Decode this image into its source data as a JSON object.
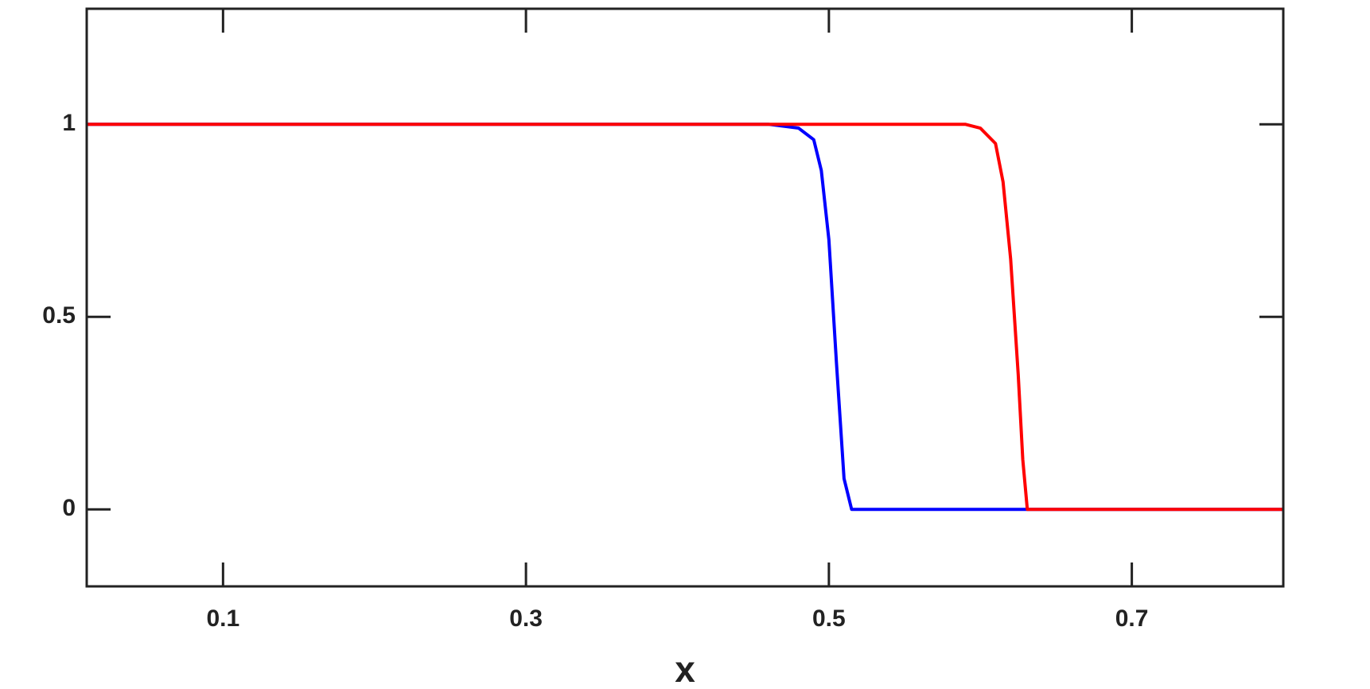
{
  "chart_data": {
    "type": "line",
    "xlabel": "x",
    "x": [
      0.01,
      0.1,
      0.2,
      0.3,
      0.4,
      0.46,
      0.48,
      0.49,
      0.495,
      0.5,
      0.505,
      0.51,
      0.515,
      0.52,
      0.59,
      0.6,
      0.61,
      0.615,
      0.62,
      0.625,
      0.628,
      0.631,
      0.634,
      0.7,
      0.8
    ],
    "series": [
      {
        "color": "#0000ff",
        "values": [
          1,
          1,
          1,
          1,
          1,
          1,
          0.99,
          0.96,
          0.88,
          0.7,
          0.38,
          0.08,
          0,
          0,
          0,
          0,
          0,
          0,
          0,
          0,
          0,
          0,
          0,
          0,
          0
        ]
      },
      {
        "color": "#ff0000",
        "values": [
          1,
          1,
          1,
          1,
          1,
          1,
          1,
          1,
          1,
          1,
          1,
          1,
          1,
          1,
          1,
          0.99,
          0.95,
          0.85,
          0.65,
          0.35,
          0.13,
          0,
          0,
          0,
          0
        ]
      }
    ],
    "xlim": [
      0.01,
      0.8
    ],
    "xticks": [
      0.1,
      0.3,
      0.5,
      0.7
    ],
    "ylim": [
      -0.2,
      1.3
    ],
    "yticks": [
      0,
      0.5,
      1
    ]
  }
}
